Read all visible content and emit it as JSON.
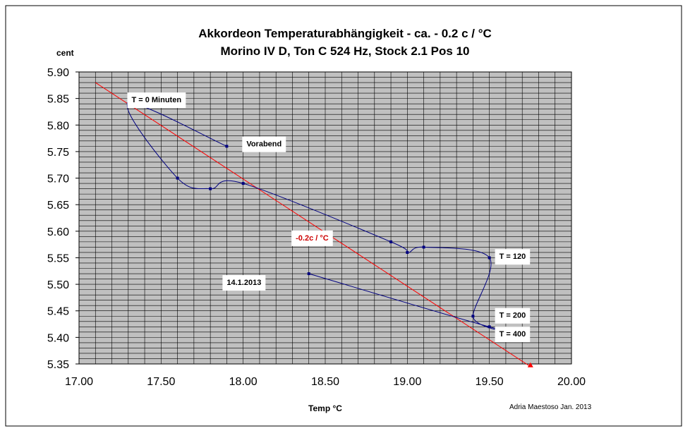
{
  "chart_data": {
    "type": "line",
    "title_line1": "Akkordeon Temperaturabhängigkeit -  ca. - 0.2 c / °C",
    "title_line2": "Morino IV D, Ton C 524 Hz,  Stock 2.1  Pos 10",
    "ylabel": "cent",
    "xlabel": "Temp °C",
    "credit": "Adria Maestoso  Jan. 2013",
    "xlim": [
      17.0,
      20.0
    ],
    "ylim": [
      5.35,
      5.9
    ],
    "xticks": [
      "17.00",
      "17.50",
      "18.00",
      "18.50",
      "19.00",
      "19.50",
      "20.00"
    ],
    "yticks": [
      "5.90",
      "5.85",
      "5.80",
      "5.75",
      "5.70",
      "5.65",
      "5.60",
      "5.55",
      "5.50",
      "5.45",
      "5.40",
      "5.35"
    ],
    "grid": true,
    "colors": {
      "plot_bg": "#c0c0c0",
      "grid": "#000000",
      "series": "#000080",
      "trend": "#ff0000"
    },
    "series": [
      {
        "x": [
          17.9,
          17.3,
          17.6,
          17.8,
          18.0,
          18.9,
          19.0,
          19.1,
          19.5,
          19.4,
          19.5,
          18.4
        ],
        "y": [
          5.76,
          5.84,
          5.7,
          5.68,
          5.69,
          5.58,
          5.56,
          5.57,
          5.55,
          5.44,
          5.42,
          5.52
        ]
      }
    ],
    "trendline": {
      "label": "-0.2c / °C",
      "x": [
        17.1,
        19.75
      ],
      "y": [
        5.88,
        5.345
      ]
    },
    "annotations": [
      {
        "text": "T = 0 Minuten",
        "x": 17.32,
        "y": 5.848
      },
      {
        "text": "Vorabend",
        "x": 18.02,
        "y": 5.765
      },
      {
        "text": "T = 120",
        "x": 19.56,
        "y": 5.553
      },
      {
        "text": "14.1.2013",
        "x": 17.9,
        "y": 5.504
      },
      {
        "text": "T = 200",
        "x": 19.56,
        "y": 5.442
      },
      {
        "text": "T = 400",
        "x": 19.56,
        "y": 5.407
      }
    ]
  }
}
